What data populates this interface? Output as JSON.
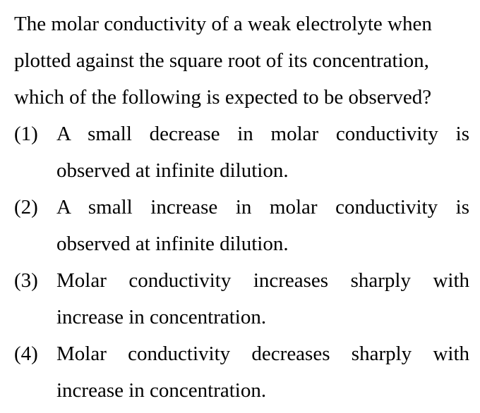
{
  "question": {
    "text": "The molar conductivity of a weak electrolyte when plotted against the square root of its concentration, which of the following is expected to be observed?"
  },
  "options": [
    {
      "number": "(1)",
      "text": "A small decrease in molar conductivity is observed at infinite dilution."
    },
    {
      "number": "(2)",
      "text": "A small increase in molar conductivity is observed at infinite dilution."
    },
    {
      "number": "(3)",
      "text": "Molar conductivity increases sharply with increase in concentration."
    },
    {
      "number": "(4)",
      "text": "Molar conductivity decreases sharply with increase in concentration."
    }
  ]
}
